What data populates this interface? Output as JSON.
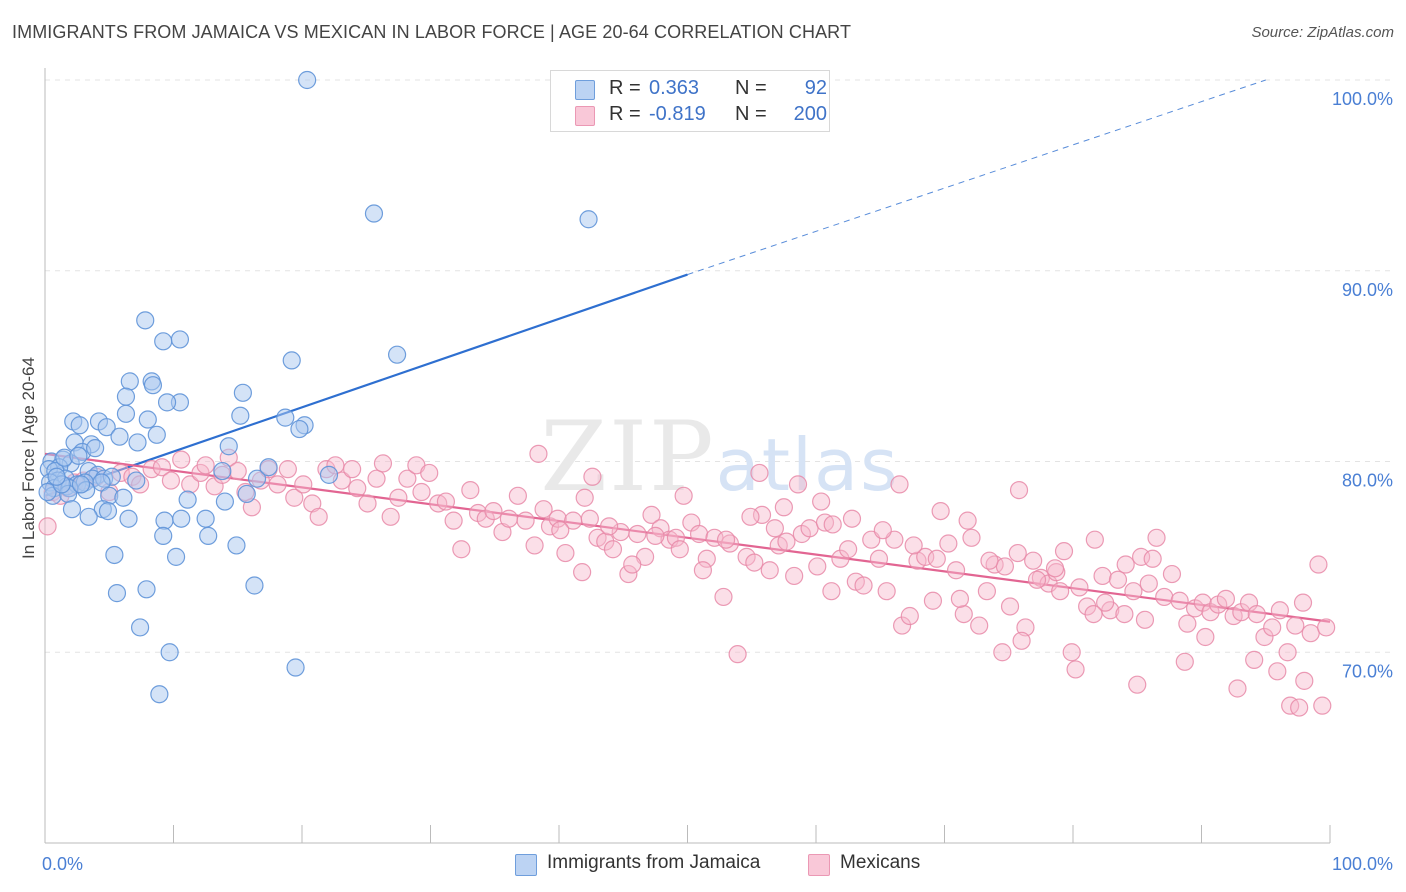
{
  "title": "IMMIGRANTS FROM JAMAICA VS MEXICAN IN LABOR FORCE | AGE 20-64 CORRELATION CHART",
  "source": "Source: ZipAtlas.com",
  "watermark": "ZIPatlas",
  "colors": {
    "blue_fill": "#a9c8f0",
    "blue_stroke": "#5f93d8",
    "blue_line": "#2e6fd0",
    "pink_fill": "#f6b9cd",
    "pink_stroke": "#e889a8",
    "pink_line": "#e26592",
    "tick_text": "#4a7fd4",
    "grid": "#e3e3e3"
  },
  "legend": {
    "rows": [
      {
        "r_label": "R =",
        "r_value": "0.363",
        "n_label": "N =",
        "n_value": "92"
      },
      {
        "r_label": "R =",
        "r_value": "-0.819",
        "n_label": "N =",
        "n_value": "200"
      }
    ]
  },
  "bottom_legend": {
    "items": [
      "Immigrants from Jamaica",
      "Mexicans"
    ]
  },
  "chart_data": {
    "type": "scatter",
    "xlabel": "",
    "ylabel": "In Labor Force | Age 20-64",
    "xlim": [
      0,
      100
    ],
    "ylim": [
      60,
      100
    ],
    "x_tick_labels": [
      "0.0%",
      "100.0%"
    ],
    "y_ticks": [
      70,
      80,
      90,
      100
    ],
    "y_tick_labels": [
      "70.0%",
      "80.0%",
      "90.0%",
      "100.0%"
    ],
    "grid": true,
    "legend_position": "top-center",
    "series": [
      {
        "name": "Immigrants from Jamaica",
        "r": 0.363,
        "n": 92,
        "trend": {
          "x0": 0,
          "y0": 78.2,
          "x1": 50,
          "y1": 89.8,
          "dashed_to_x": 95,
          "dashed_to_y": 100
        },
        "points": [
          [
            20.4,
            100
          ],
          [
            25.6,
            93.0
          ],
          [
            42.3,
            92.7
          ],
          [
            7.8,
            87.4
          ],
          [
            10.5,
            86.4
          ],
          [
            9.2,
            86.3
          ],
          [
            19.2,
            85.3
          ],
          [
            27.4,
            85.6
          ],
          [
            6.6,
            84.2
          ],
          [
            8.3,
            84.2
          ],
          [
            8.4,
            84.0
          ],
          [
            15.4,
            83.6
          ],
          [
            10.5,
            83.1
          ],
          [
            9.5,
            83.1
          ],
          [
            6.3,
            83.4
          ],
          [
            2.2,
            82.1
          ],
          [
            4.2,
            82.1
          ],
          [
            6.3,
            82.5
          ],
          [
            8.0,
            82.2
          ],
          [
            15.2,
            82.4
          ],
          [
            18.7,
            82.3
          ],
          [
            20.2,
            81.9
          ],
          [
            19.8,
            81.7
          ],
          [
            2.7,
            81.9
          ],
          [
            4.8,
            81.8
          ],
          [
            5.8,
            81.3
          ],
          [
            7.2,
            81.0
          ],
          [
            8.7,
            81.4
          ],
          [
            2.3,
            81.0
          ],
          [
            3.6,
            80.9
          ],
          [
            14.3,
            80.8
          ],
          [
            2.9,
            80.5
          ],
          [
            1.4,
            80.1
          ],
          [
            0.5,
            80.0
          ],
          [
            2.0,
            79.9
          ],
          [
            1.1,
            79.7
          ],
          [
            0.3,
            79.6
          ],
          [
            0.8,
            79.5
          ],
          [
            3.4,
            79.5
          ],
          [
            4.1,
            79.3
          ],
          [
            3.7,
            79.1
          ],
          [
            1.6,
            79.1
          ],
          [
            1.0,
            79.0
          ],
          [
            0.4,
            78.9
          ],
          [
            1.7,
            78.7
          ],
          [
            2.5,
            78.8
          ],
          [
            3.1,
            78.9
          ],
          [
            4.6,
            79.1
          ],
          [
            5.2,
            79.2
          ],
          [
            4.4,
            78.9
          ],
          [
            0.7,
            78.6
          ],
          [
            1.9,
            78.6
          ],
          [
            3.2,
            78.5
          ],
          [
            0.6,
            78.2
          ],
          [
            5.0,
            78.2
          ],
          [
            6.1,
            78.1
          ],
          [
            0.2,
            78.4
          ],
          [
            1.8,
            78.3
          ],
          [
            2.8,
            78.8
          ],
          [
            1.3,
            78.8
          ],
          [
            16.5,
            79.1
          ],
          [
            17.4,
            79.7
          ],
          [
            22.1,
            79.3
          ],
          [
            14.0,
            77.9
          ],
          [
            15.7,
            78.3
          ],
          [
            4.5,
            77.5
          ],
          [
            6.5,
            77.0
          ],
          [
            3.4,
            77.1
          ],
          [
            4.9,
            77.4
          ],
          [
            2.1,
            77.5
          ],
          [
            9.3,
            76.9
          ],
          [
            10.6,
            77.0
          ],
          [
            12.5,
            77.0
          ],
          [
            9.2,
            76.1
          ],
          [
            12.7,
            76.1
          ],
          [
            14.9,
            75.6
          ],
          [
            5.4,
            75.1
          ],
          [
            10.2,
            75.0
          ],
          [
            16.3,
            73.5
          ],
          [
            5.6,
            73.1
          ],
          [
            7.9,
            73.3
          ],
          [
            7.4,
            71.3
          ],
          [
            9.7,
            70.0
          ],
          [
            19.5,
            69.2
          ],
          [
            8.9,
            67.8
          ],
          [
            1.5,
            80.2
          ],
          [
            2.6,
            80.3
          ],
          [
            0.9,
            79.2
          ],
          [
            3.9,
            80.7
          ],
          [
            11.1,
            78.0
          ],
          [
            13.8,
            79.5
          ],
          [
            7.1,
            79.0
          ]
        ]
      },
      {
        "name": "Mexicans",
        "r": -0.819,
        "n": 200,
        "trend": {
          "x0": 0,
          "y0": 80.4,
          "x1": 100,
          "y1": 71.6
        },
        "points": [
          [
            0.2,
            76.6
          ],
          [
            0.6,
            78.4
          ],
          [
            1.2,
            78.2
          ],
          [
            1.8,
            78.6
          ],
          [
            2.3,
            78.9
          ],
          [
            3.0,
            79.0
          ],
          [
            4.0,
            79.2
          ],
          [
            5.0,
            78.4
          ],
          [
            5.9,
            79.4
          ],
          [
            6.8,
            79.2
          ],
          [
            7.4,
            78.8
          ],
          [
            8.3,
            79.6
          ],
          [
            9.1,
            79.7
          ],
          [
            9.8,
            79.0
          ],
          [
            10.6,
            80.1
          ],
          [
            11.3,
            78.8
          ],
          [
            12.1,
            79.4
          ],
          [
            12.5,
            79.8
          ],
          [
            13.2,
            78.7
          ],
          [
            13.8,
            79.3
          ],
          [
            14.3,
            80.2
          ],
          [
            15.0,
            79.5
          ],
          [
            15.6,
            78.4
          ],
          [
            16.1,
            77.6
          ],
          [
            16.8,
            79.0
          ],
          [
            17.4,
            79.6
          ],
          [
            18.1,
            78.8
          ],
          [
            18.9,
            79.6
          ],
          [
            19.4,
            78.1
          ],
          [
            20.1,
            78.8
          ],
          [
            20.8,
            77.8
          ],
          [
            21.3,
            77.1
          ],
          [
            21.9,
            79.6
          ],
          [
            22.6,
            79.8
          ],
          [
            23.1,
            79.0
          ],
          [
            23.9,
            79.6
          ],
          [
            24.3,
            78.6
          ],
          [
            25.1,
            77.8
          ],
          [
            25.8,
            79.1
          ],
          [
            26.3,
            79.9
          ],
          [
            26.9,
            77.1
          ],
          [
            27.5,
            78.1
          ],
          [
            28.2,
            79.1
          ],
          [
            28.9,
            79.8
          ],
          [
            29.3,
            78.4
          ],
          [
            29.9,
            79.4
          ],
          [
            30.6,
            77.8
          ],
          [
            31.2,
            77.9
          ],
          [
            31.8,
            76.9
          ],
          [
            32.4,
            75.4
          ],
          [
            33.1,
            78.5
          ],
          [
            33.7,
            77.3
          ],
          [
            34.3,
            77.0
          ],
          [
            34.9,
            77.4
          ],
          [
            35.6,
            76.3
          ],
          [
            36.1,
            77.0
          ],
          [
            36.8,
            78.2
          ],
          [
            37.4,
            76.9
          ],
          [
            38.1,
            75.6
          ],
          [
            38.8,
            77.5
          ],
          [
            39.3,
            76.6
          ],
          [
            39.9,
            77.0
          ],
          [
            40.5,
            75.2
          ],
          [
            41.1,
            76.9
          ],
          [
            41.8,
            74.2
          ],
          [
            42.4,
            77.0
          ],
          [
            43.0,
            76.0
          ],
          [
            43.6,
            75.8
          ],
          [
            44.2,
            75.4
          ],
          [
            44.8,
            76.3
          ],
          [
            45.4,
            74.1
          ],
          [
            46.1,
            76.2
          ],
          [
            46.7,
            75.0
          ],
          [
            47.2,
            77.2
          ],
          [
            47.9,
            76.5
          ],
          [
            48.6,
            75.9
          ],
          [
            49.1,
            76.0
          ],
          [
            49.7,
            78.2
          ],
          [
            50.3,
            76.8
          ],
          [
            50.9,
            76.2
          ],
          [
            51.5,
            74.9
          ],
          [
            52.1,
            76.0
          ],
          [
            52.8,
            72.9
          ],
          [
            53.3,
            75.7
          ],
          [
            53.9,
            69.9
          ],
          [
            54.6,
            75.0
          ],
          [
            55.2,
            74.7
          ],
          [
            55.8,
            77.2
          ],
          [
            56.4,
            74.3
          ],
          [
            57.1,
            75.6
          ],
          [
            57.7,
            75.8
          ],
          [
            58.3,
            74.0
          ],
          [
            58.9,
            76.2
          ],
          [
            59.5,
            76.5
          ],
          [
            60.1,
            74.5
          ],
          [
            60.7,
            76.8
          ],
          [
            61.2,
            73.2
          ],
          [
            61.9,
            74.9
          ],
          [
            62.5,
            75.4
          ],
          [
            63.1,
            73.7
          ],
          [
            63.7,
            73.5
          ],
          [
            64.3,
            75.9
          ],
          [
            64.9,
            74.9
          ],
          [
            65.5,
            73.2
          ],
          [
            66.1,
            75.9
          ],
          [
            66.7,
            71.4
          ],
          [
            67.3,
            71.9
          ],
          [
            67.9,
            74.8
          ],
          [
            68.5,
            75.0
          ],
          [
            69.1,
            72.7
          ],
          [
            69.7,
            77.4
          ],
          [
            70.3,
            75.7
          ],
          [
            70.9,
            74.3
          ],
          [
            71.5,
            72.0
          ],
          [
            72.1,
            76.0
          ],
          [
            72.7,
            71.4
          ],
          [
            73.3,
            73.2
          ],
          [
            73.9,
            74.6
          ],
          [
            74.5,
            70.0
          ],
          [
            75.1,
            72.4
          ],
          [
            75.7,
            75.2
          ],
          [
            76.3,
            71.3
          ],
          [
            76.9,
            74.8
          ],
          [
            77.5,
            73.9
          ],
          [
            78.1,
            73.6
          ],
          [
            78.7,
            74.2
          ],
          [
            79.3,
            75.3
          ],
          [
            79.9,
            70.0
          ],
          [
            80.5,
            73.4
          ],
          [
            81.1,
            72.4
          ],
          [
            81.7,
            75.9
          ],
          [
            82.3,
            74.0
          ],
          [
            82.9,
            72.2
          ],
          [
            83.5,
            73.8
          ],
          [
            84.1,
            74.6
          ],
          [
            84.7,
            73.2
          ],
          [
            85.3,
            75.0
          ],
          [
            85.9,
            73.6
          ],
          [
            86.5,
            76.0
          ],
          [
            87.1,
            72.9
          ],
          [
            87.7,
            74.1
          ],
          [
            88.3,
            72.7
          ],
          [
            88.9,
            71.5
          ],
          [
            89.5,
            72.3
          ],
          [
            90.1,
            72.6
          ],
          [
            90.7,
            72.1
          ],
          [
            91.3,
            72.5
          ],
          [
            91.9,
            72.8
          ],
          [
            92.5,
            71.9
          ],
          [
            93.1,
            72.1
          ],
          [
            93.7,
            72.6
          ],
          [
            94.3,
            72.0
          ],
          [
            94.9,
            70.8
          ],
          [
            95.5,
            71.3
          ],
          [
            96.1,
            72.2
          ],
          [
            96.7,
            70.0
          ],
          [
            97.3,
            71.4
          ],
          [
            97.9,
            72.6
          ],
          [
            98.5,
            71.0
          ],
          [
            99.1,
            74.6
          ],
          [
            99.7,
            71.3
          ],
          [
            42.6,
            79.2
          ],
          [
            55.6,
            79.4
          ],
          [
            57.5,
            77.6
          ],
          [
            61.3,
            76.7
          ],
          [
            66.5,
            78.8
          ],
          [
            71.8,
            76.9
          ],
          [
            74.7,
            74.5
          ],
          [
            75.8,
            78.5
          ],
          [
            78.6,
            74.4
          ],
          [
            80.2,
            69.1
          ],
          [
            82.5,
            72.6
          ],
          [
            84.0,
            72.0
          ],
          [
            85.6,
            71.7
          ],
          [
            86.2,
            74.9
          ],
          [
            88.7,
            69.5
          ],
          [
            90.3,
            70.8
          ],
          [
            92.8,
            68.1
          ],
          [
            94.1,
            69.6
          ],
          [
            95.9,
            69.0
          ],
          [
            96.9,
            67.2
          ],
          [
            97.6,
            67.1
          ],
          [
            98.0,
            68.5
          ],
          [
            99.4,
            67.2
          ],
          [
            85.0,
            68.3
          ],
          [
            81.6,
            72.0
          ],
          [
            79.0,
            73.2
          ],
          [
            77.2,
            73.8
          ],
          [
            76.0,
            70.6
          ],
          [
            73.5,
            74.8
          ],
          [
            71.2,
            72.8
          ],
          [
            69.4,
            74.9
          ],
          [
            67.6,
            75.6
          ],
          [
            65.2,
            76.4
          ],
          [
            62.8,
            77.0
          ],
          [
            60.4,
            77.9
          ],
          [
            58.6,
            78.8
          ],
          [
            56.8,
            76.5
          ],
          [
            54.9,
            77.1
          ],
          [
            53.0,
            75.9
          ],
          [
            51.2,
            74.3
          ],
          [
            49.4,
            75.4
          ],
          [
            47.5,
            76.1
          ],
          [
            45.7,
            74.6
          ],
          [
            43.9,
            76.6
          ],
          [
            42.0,
            78.1
          ],
          [
            40.1,
            76.4
          ],
          [
            38.4,
            80.4
          ]
        ]
      }
    ]
  }
}
